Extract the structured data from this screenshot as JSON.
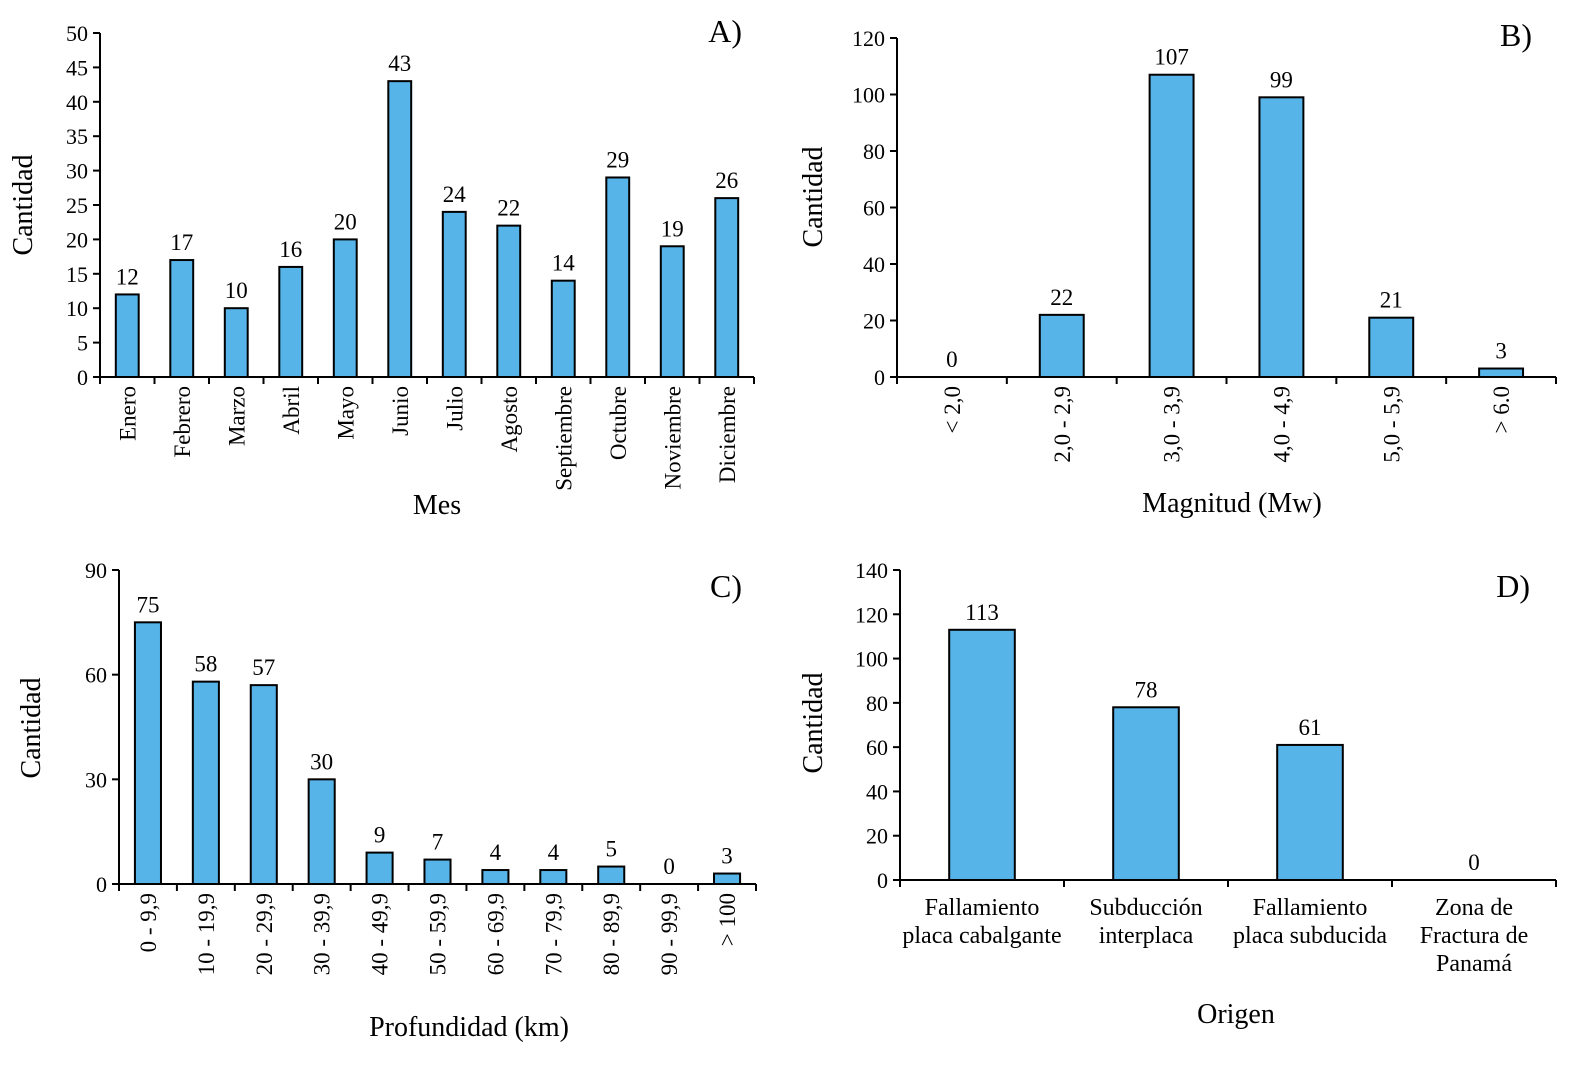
{
  "colors": {
    "bar_fill": "#56b4e9",
    "bar_stroke": "#000000",
    "axis": "#000000"
  },
  "chart_data": [
    {
      "id": "A",
      "type": "bar",
      "panel_label": "A)",
      "title": "",
      "xlabel": "Mes",
      "ylabel": "Cantidad",
      "categories": [
        "Enero",
        "Febrero",
        "Marzo",
        "Abril",
        "Mayo",
        "Junio",
        "Julio",
        "Agosto",
        "Septiembre",
        "Octubre",
        "Noviembre",
        "Diciembre"
      ],
      "values": [
        12,
        17,
        10,
        16,
        20,
        43,
        24,
        22,
        14,
        29,
        19,
        26
      ],
      "ylim": [
        0,
        50
      ],
      "yticks": [
        0,
        5,
        10,
        15,
        20,
        25,
        30,
        35,
        40,
        45,
        50
      ],
      "category_label_orientation": "rotated",
      "grid": false
    },
    {
      "id": "B",
      "type": "bar",
      "panel_label": "B)",
      "title": "",
      "xlabel": "Magnitud  (Mw)",
      "ylabel": "Cantidad",
      "categories": [
        "< 2,0",
        "2,0 - 2,9",
        "3,0 - 3,9",
        "4,0 - 4,9",
        "5,0 - 5,9",
        "> 6.0"
      ],
      "values": [
        0,
        22,
        107,
        99,
        21,
        3
      ],
      "ylim": [
        0,
        120
      ],
      "yticks": [
        0,
        20,
        40,
        60,
        80,
        100,
        120
      ],
      "category_label_orientation": "rotated",
      "grid": false
    },
    {
      "id": "C",
      "type": "bar",
      "panel_label": "C)",
      "title": "",
      "xlabel": "Profundidad (km)",
      "ylabel": "Cantidad",
      "categories": [
        "0 - 9,9",
        "10 - 19,9",
        "20 - 29,9",
        "30 - 39,9",
        "40 - 49,9",
        "50 - 59,9",
        "60 - 69,9",
        "70 - 79,9",
        "80 - 89,9",
        "90 - 99,9",
        "> 100"
      ],
      "values": [
        75,
        58,
        57,
        30,
        9,
        7,
        4,
        4,
        5,
        0,
        3
      ],
      "ylim": [
        0,
        90
      ],
      "yticks": [
        0,
        30,
        60,
        90
      ],
      "category_label_orientation": "rotated",
      "grid": false
    },
    {
      "id": "D",
      "type": "bar",
      "panel_label": "D)",
      "title": "",
      "xlabel": "Origen",
      "ylabel": "Cantidad",
      "categories": [
        [
          "Fallamiento",
          "placa cabalgante"
        ],
        [
          "Subducción",
          "interplaca"
        ],
        [
          "Fallamiento",
          "placa subducida"
        ],
        [
          "Zona de",
          "Fractura de",
          "Panamá"
        ]
      ],
      "values": [
        113,
        78,
        61,
        0
      ],
      "ylim": [
        0,
        140
      ],
      "yticks": [
        0,
        20,
        40,
        60,
        80,
        100,
        120,
        140
      ],
      "category_label_orientation": "horizontal",
      "grid": false
    }
  ]
}
